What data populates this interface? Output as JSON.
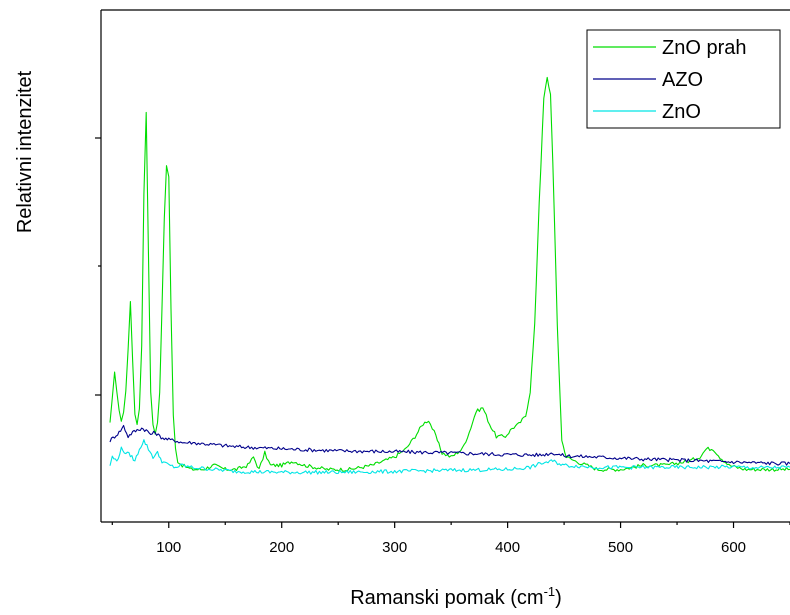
{
  "chart_data": {
    "type": "line",
    "title": "",
    "xlabel": "Ramanski pomak (cm",
    "xlabel_sup": "-1",
    "xlabel_close": ")",
    "ylabel": "Relativni intenzitet",
    "xlim": [
      40,
      650
    ],
    "ylim": [
      0,
      100
    ],
    "y_tick_labels_shown": false,
    "grid": false,
    "legend_position": "top-right",
    "x_ticks": [
      100,
      200,
      300,
      400,
      500,
      600
    ],
    "x_tick_labels": [
      "100",
      "200",
      "300",
      "400",
      "500",
      "600"
    ],
    "series": [
      {
        "name": "ZnO prah",
        "color": "#00dd00",
        "x": [
          48,
          50,
          52,
          54,
          56,
          58,
          60,
          62,
          64,
          66,
          68,
          70,
          72,
          74,
          76,
          78,
          80,
          82,
          84,
          86,
          88,
          90,
          92,
          94,
          96,
          98,
          100,
          102,
          104,
          106,
          108,
          112,
          120,
          130,
          140,
          150,
          160,
          170,
          175,
          180,
          185,
          190,
          200,
          210,
          220,
          240,
          260,
          280,
          300,
          310,
          318,
          325,
          330,
          335,
          342,
          350,
          360,
          366,
          372,
          378,
          384,
          390,
          398,
          404,
          410,
          416,
          420,
          424,
          428,
          432,
          435,
          438,
          440,
          444,
          448,
          452,
          460,
          480,
          500,
          520,
          540,
          560,
          570,
          576,
          582,
          588,
          596,
          610,
          630,
          650
        ],
        "y": [
          16,
          22,
          29,
          24,
          19,
          17,
          19,
          24,
          34,
          46,
          32,
          18,
          16,
          20,
          35,
          72,
          92,
          58,
          24,
          16,
          14,
          16,
          24,
          44,
          66,
          79,
          76,
          44,
          18,
          10,
          7,
          6,
          5,
          5,
          6,
          5,
          5,
          6,
          8,
          5,
          9,
          6,
          6,
          7,
          6,
          5,
          5,
          6,
          8,
          10,
          13,
          16,
          17,
          14,
          9,
          8,
          10,
          14,
          19,
          20,
          16,
          13,
          13,
          15,
          16,
          18,
          24,
          40,
          70,
          95,
          100,
          96,
          80,
          40,
          12,
          8,
          7,
          5,
          5,
          6,
          6,
          7,
          8,
          10,
          10,
          8,
          6,
          5,
          5,
          5
        ]
      },
      {
        "name": "AZO",
        "color": "#00008b",
        "x": [
          48,
          52,
          56,
          60,
          64,
          68,
          72,
          76,
          80,
          84,
          88,
          92,
          96,
          100,
          106,
          112,
          120,
          140,
          160,
          200,
          250,
          300,
          350,
          400,
          430,
          440,
          450,
          480,
          520,
          560,
          600,
          620,
          650
        ],
        "y": [
          12,
          13,
          14,
          15.5,
          13,
          14,
          14.5,
          15,
          14.5,
          13.5,
          14,
          13,
          12.5,
          12.2,
          12,
          11.5,
          11.5,
          11,
          10.5,
          10,
          9.5,
          9.3,
          9,
          8.6,
          8.5,
          9,
          8.3,
          8,
          7.5,
          7.2,
          6.8,
          6.6,
          6.4
        ]
      },
      {
        "name": "ZnO",
        "color": "#00e5e5",
        "x": [
          48,
          50,
          54,
          58,
          62,
          66,
          70,
          74,
          78,
          82,
          86,
          90,
          94,
          100,
          106,
          112,
          120,
          140,
          160,
          200,
          250,
          300,
          350,
          400,
          420,
          430,
          440,
          450,
          480,
          520,
          560,
          600,
          620,
          650
        ],
        "y": [
          6,
          8,
          7,
          10,
          9,
          8.5,
          7,
          10,
          12,
          10,
          8,
          9,
          7,
          6,
          5.5,
          6,
          5.5,
          5,
          4.5,
          4.3,
          4.3,
          4.5,
          4.8,
          5,
          5.5,
          6.5,
          7,
          6,
          5.5,
          5.5,
          5.5,
          5.6,
          5.4,
          5.5
        ]
      }
    ]
  }
}
